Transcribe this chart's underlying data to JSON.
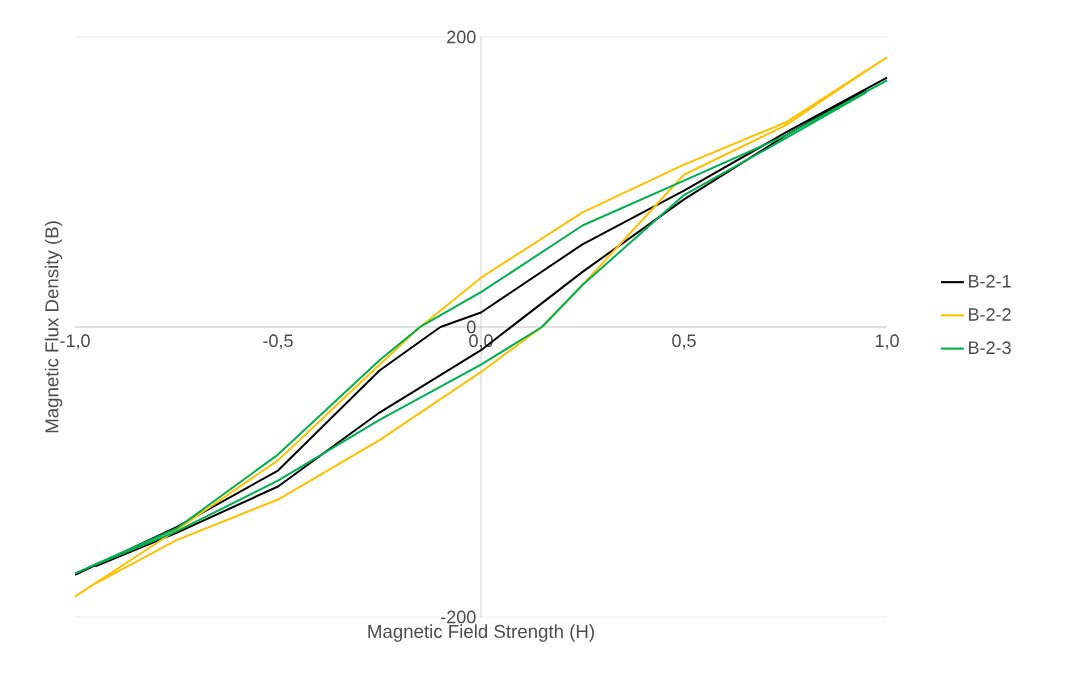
{
  "chart_data": {
    "type": "line",
    "xlabel": "Magnetic Field Strength (H)",
    "ylabel": "Magnetic Flux Density (B)",
    "xlim": [
      -1,
      1
    ],
    "ylim": [
      -200,
      200
    ],
    "xticks": [
      {
        "value": -1,
        "label": "-1,0"
      },
      {
        "value": -0.5,
        "label": "-0,5"
      },
      {
        "value": 0,
        "label": "0,0"
      },
      {
        "value": 0.5,
        "label": "0,5"
      },
      {
        "value": 1,
        "label": "1,0"
      }
    ],
    "yticks": [
      -200,
      0,
      200
    ],
    "grid": "y",
    "legend": "right",
    "marker": "none",
    "series": [
      {
        "name": "B-2-1",
        "color": "#000000",
        "x": [
          -1,
          -0.75,
          -0.5,
          -0.25,
          -0.1,
          0,
          0.25,
          0.5,
          0.75,
          1
        ],
        "values": [
          -171,
          -138,
          -99,
          -30,
          0,
          10,
          57,
          94,
          134,
          172
        ]
      },
      {
        "color": "#000000",
        "x": [
          -0.95,
          -0.75,
          -0.5,
          -0.25,
          0,
          0.25,
          0.5,
          0.75,
          0.95
        ],
        "values": [
          -165,
          -142,
          -110,
          -59,
          -16,
          38,
          88,
          132,
          164
        ]
      },
      {
        "name": "B-2-2",
        "color": "#ffc000",
        "x": [
          -1,
          -0.75,
          -0.5,
          -0.25,
          -0.15,
          0,
          0.25,
          0.5,
          0.75,
          1
        ],
        "values": [
          -186,
          -140,
          -92,
          -26,
          0,
          34,
          79,
          112,
          141,
          186
        ]
      },
      {
        "color": "#ffc000",
        "x": [
          -0.95,
          -0.75,
          -0.5,
          -0.25,
          0,
          0.15,
          0.25,
          0.5,
          0.75,
          0.95
        ],
        "values": [
          -177,
          -147,
          -119,
          -78,
          -31,
          0,
          29,
          105,
          139,
          177
        ]
      },
      {
        "name": "B-2-3",
        "color": "#00b050",
        "x": [
          -1,
          -0.75,
          -0.5,
          -0.25,
          -0.15,
          0,
          0.25,
          0.5,
          0.75,
          1
        ],
        "values": [
          -170,
          -139,
          -88,
          -23,
          0,
          24,
          70,
          101,
          132,
          170
        ]
      },
      {
        "color": "#00b050",
        "x": [
          -0.95,
          -0.75,
          -0.5,
          -0.25,
          0,
          0.15,
          0.25,
          0.5,
          0.75,
          0.95
        ],
        "values": [
          -164,
          -141,
          -106,
          -64,
          -26,
          0,
          29,
          91,
          130,
          162
        ]
      }
    ]
  }
}
